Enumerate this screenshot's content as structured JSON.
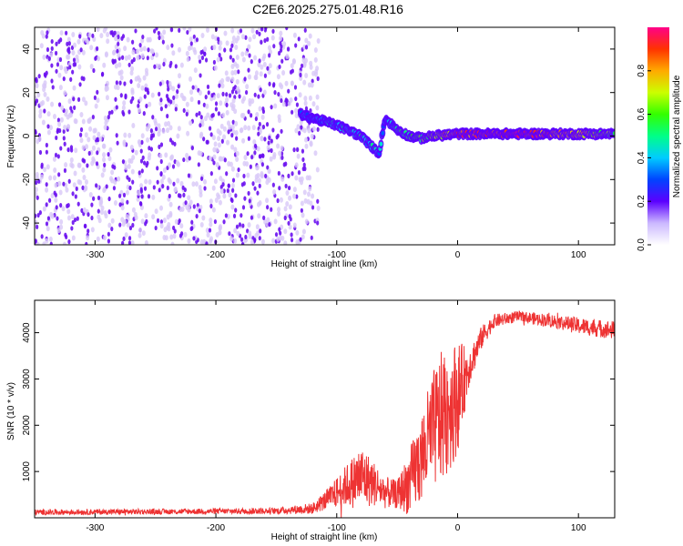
{
  "title": "C2E6.2025.275.01.48.R16",
  "colors": {
    "snr_line": "#ee3333",
    "frame": "#000000",
    "scatter_light": "#d8c8f8",
    "scatter_dark": "#6a10f0"
  },
  "chart_data": [
    {
      "type": "heatmap",
      "name": "spectrogram",
      "xlabel": "Height of straight line (km)",
      "ylabel": "Frequency (Hz)",
      "xlim": [
        -350,
        130
      ],
      "ylim": [
        -50,
        50
      ],
      "xticks": [
        -300,
        -200,
        -100,
        0,
        100
      ],
      "xtick_labels": [
        "-300",
        "-200",
        "-100",
        "0",
        "100"
      ],
      "yticks": [
        -40,
        -20,
        0,
        20,
        40
      ],
      "ytick_labels": [
        "-40",
        "-20",
        "0",
        "20",
        "40"
      ],
      "noise_region_x": [
        -350,
        -115
      ],
      "trace_x": [
        -130,
        -100,
        -80,
        -65,
        -60,
        -50,
        -40,
        -30,
        -20,
        0,
        50,
        100,
        130
      ],
      "trace_y": [
        10,
        5,
        0,
        -8,
        8,
        3,
        0,
        -1,
        0,
        1,
        1,
        1,
        1
      ],
      "trace_amplitude": [
        0.3,
        0.4,
        0.45,
        0.4,
        0.3,
        0.45,
        0.5,
        0.55,
        0.7,
        0.85,
        0.95,
        0.75,
        0.6
      ],
      "colorbar": {
        "label": "Normalized spectral amplitude",
        "range": [
          0,
          1
        ],
        "ticks": [
          0.0,
          0.2,
          0.4,
          0.6,
          0.8
        ],
        "tick_labels": [
          "0.0",
          "0.2",
          "0.4",
          "0.6",
          "0.8"
        ]
      }
    },
    {
      "type": "line",
      "name": "snr",
      "xlabel": "Height of straight line (km)",
      "ylabel": "SNR (10 * v/v)",
      "xlim": [
        -350,
        130
      ],
      "ylim": [
        0,
        4700
      ],
      "xticks": [
        -300,
        -200,
        -100,
        0,
        100
      ],
      "xtick_labels": [
        "-300",
        "-200",
        "-100",
        "0",
        "100"
      ],
      "yticks": [
        1000,
        2000,
        3000,
        4000
      ],
      "ytick_labels": [
        "1000",
        "2000",
        "3000",
        "4000"
      ],
      "envelope": {
        "x": [
          -350,
          -200,
          -150,
          -120,
          -105,
          -95,
          -85,
          -80,
          -70,
          -60,
          -50,
          -40,
          -30,
          -20,
          -10,
          0,
          10,
          20,
          30,
          50,
          80,
          100,
          130
        ],
        "mean": [
          120,
          140,
          150,
          200,
          450,
          650,
          800,
          900,
          750,
          550,
          500,
          750,
          1300,
          1900,
          2300,
          2600,
          3300,
          3900,
          4250,
          4350,
          4250,
          4150,
          4050
        ],
        "amp": [
          60,
          60,
          70,
          120,
          250,
          400,
          600,
          700,
          500,
          350,
          300,
          700,
          1000,
          1300,
          1500,
          1200,
          400,
          250,
          150,
          120,
          150,
          180,
          200
        ]
      }
    }
  ]
}
